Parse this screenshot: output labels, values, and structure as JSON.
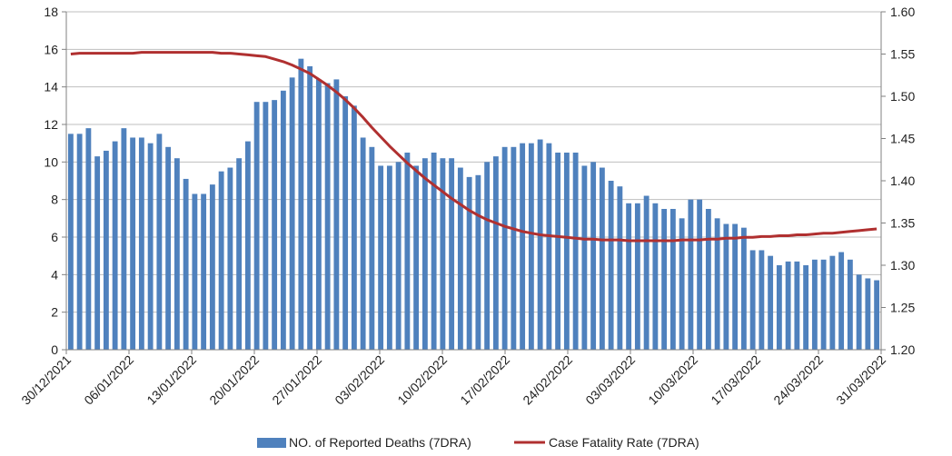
{
  "chart_data": {
    "type": "bar",
    "x_tick_labels": [
      "30/12/2021",
      "06/01/2022",
      "13/01/2022",
      "20/01/2022",
      "27/01/2022",
      "03/02/2022",
      "10/02/2022",
      "17/02/2022",
      "24/02/2022",
      "03/03/2022",
      "10/03/2022",
      "17/03/2022",
      "24/03/2022",
      "31/03/2022"
    ],
    "y_left": {
      "ylim": [
        0,
        18
      ],
      "ticks": [
        "0",
        "2",
        "4",
        "6",
        "8",
        "10",
        "12",
        "14",
        "16",
        "18"
      ]
    },
    "y_right": {
      "ylim": [
        1.2,
        1.6
      ],
      "ticks": [
        "1.20",
        "1.25",
        "1.30",
        "1.35",
        "1.40",
        "1.45",
        "1.50",
        "1.55",
        "1.60"
      ]
    },
    "grid": "horizontal",
    "legend_placement": "bottom",
    "series": [
      {
        "name": "NO. of Reported Deaths (7DRA)",
        "type": "bar",
        "axis": "left",
        "color": "#4f81bd",
        "values": [
          11.5,
          11.5,
          11.8,
          10.3,
          10.6,
          11.1,
          11.8,
          11.3,
          11.3,
          11.0,
          11.5,
          10.8,
          10.2,
          9.1,
          8.3,
          8.3,
          8.8,
          9.5,
          9.7,
          10.2,
          11.1,
          13.2,
          13.2,
          13.3,
          13.8,
          14.5,
          15.5,
          15.1,
          14.4,
          14.2,
          14.4,
          13.5,
          13.0,
          11.3,
          10.8,
          9.8,
          9.8,
          10.0,
          10.5,
          9.8,
          10.2,
          10.5,
          10.2,
          10.2,
          9.7,
          9.2,
          9.3,
          10.0,
          10.3,
          10.8,
          10.8,
          11.0,
          11.0,
          11.2,
          11.0,
          10.5,
          10.5,
          10.5,
          9.8,
          10.0,
          9.7,
          9.0,
          8.7,
          7.8,
          7.8,
          8.2,
          7.8,
          7.5,
          7.5,
          7.0,
          8.0,
          8.0,
          7.5,
          7.0,
          6.7,
          6.7,
          6.5,
          5.3,
          5.3,
          5.0,
          4.5,
          4.7,
          4.7,
          4.5,
          4.8,
          4.8,
          5.0,
          5.2,
          4.8,
          4.0,
          3.8,
          3.7
        ]
      },
      {
        "name": "Case Fatality Rate (7DRA)",
        "type": "line",
        "axis": "right",
        "color": "#b03030",
        "values": [
          1.55,
          1.551,
          1.551,
          1.551,
          1.551,
          1.551,
          1.551,
          1.551,
          1.552,
          1.552,
          1.552,
          1.552,
          1.552,
          1.552,
          1.552,
          1.552,
          1.552,
          1.551,
          1.551,
          1.55,
          1.549,
          1.548,
          1.547,
          1.544,
          1.541,
          1.537,
          1.532,
          1.527,
          1.52,
          1.513,
          1.505,
          1.496,
          1.486,
          1.475,
          1.463,
          1.452,
          1.441,
          1.431,
          1.421,
          1.412,
          1.403,
          1.395,
          1.387,
          1.379,
          1.372,
          1.365,
          1.359,
          1.354,
          1.35,
          1.346,
          1.343,
          1.34,
          1.338,
          1.336,
          1.335,
          1.334,
          1.333,
          1.332,
          1.331,
          1.331,
          1.33,
          1.33,
          1.33,
          1.329,
          1.329,
          1.329,
          1.329,
          1.329,
          1.329,
          1.33,
          1.33,
          1.33,
          1.331,
          1.331,
          1.332,
          1.332,
          1.333,
          1.333,
          1.334,
          1.334,
          1.335,
          1.335,
          1.336,
          1.336,
          1.337,
          1.338,
          1.338,
          1.339,
          1.34,
          1.341,
          1.342,
          1.343
        ]
      }
    ]
  }
}
